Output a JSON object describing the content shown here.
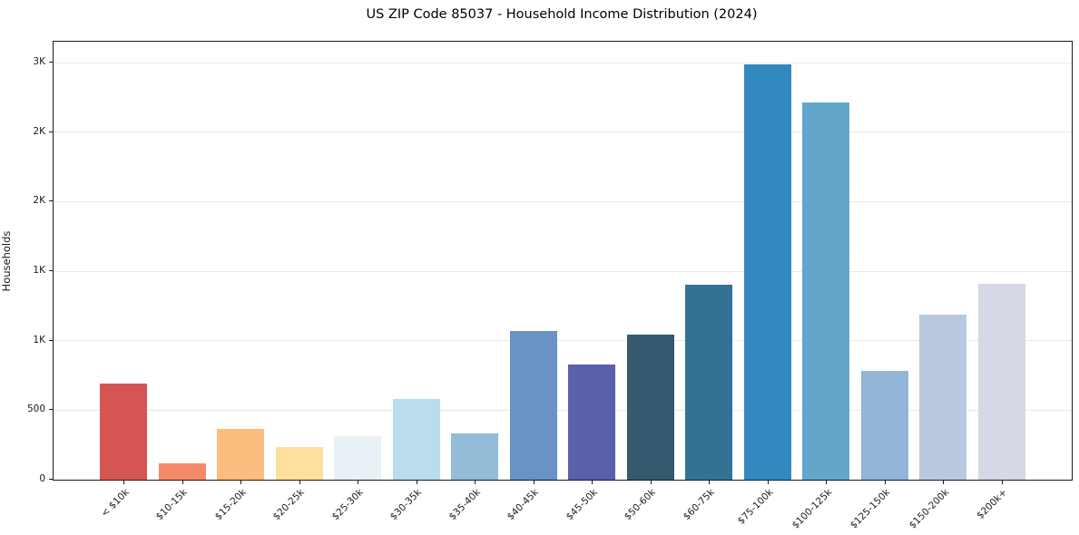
{
  "figure": {
    "title": "US ZIP Code 85037 - Household Income Distribution (2024)",
    "ylabel": "Households",
    "background_color": "#ffffff",
    "spine_color": "#1a1a1a",
    "grid_color": "#e8e8e8"
  },
  "chart_data": {
    "type": "bar",
    "title": "US ZIP Code 85037 - Household Income Distribution (2024)",
    "xlabel": "",
    "ylabel": "Households",
    "ylim": [
      0,
      3150
    ],
    "grid": "horizontal",
    "legend": "none",
    "categories": [
      "< $10k",
      "$10-15k",
      "$15-20k",
      "$20-25k",
      "$25-30k",
      "$30-35k",
      "$35-40k",
      "$40-45k",
      "$45-50k",
      "$50-60k",
      "$60-75k",
      "$75-100k",
      "$100-125k",
      "$125-150k",
      "$150-200k",
      "$200k+"
    ],
    "values": [
      690,
      118,
      368,
      237,
      314,
      578,
      335,
      1070,
      830,
      1043,
      1400,
      2985,
      2715,
      780,
      1190,
      1407
    ],
    "bar_colors": [
      "#d55553",
      "#f48a68",
      "#fbbc7d",
      "#fce09c",
      "#e8f1f6",
      "#b9ddec",
      "#92bcd8",
      "#6a92c4",
      "#5a60ab",
      "#35596f",
      "#347295",
      "#3389bf",
      "#62a6cc",
      "#93b5d7",
      "#b9c8df",
      "#d6d8e6"
    ],
    "yticks": [
      {
        "value": 0,
        "label": "0"
      },
      {
        "value": 500,
        "label": "500"
      },
      {
        "value": 1000,
        "label": "1K"
      },
      {
        "value": 1500,
        "label": "1K"
      },
      {
        "value": 2000,
        "label": "2K"
      },
      {
        "value": 2500,
        "label": "2K"
      },
      {
        "value": 3000,
        "label": "3K"
      }
    ]
  }
}
